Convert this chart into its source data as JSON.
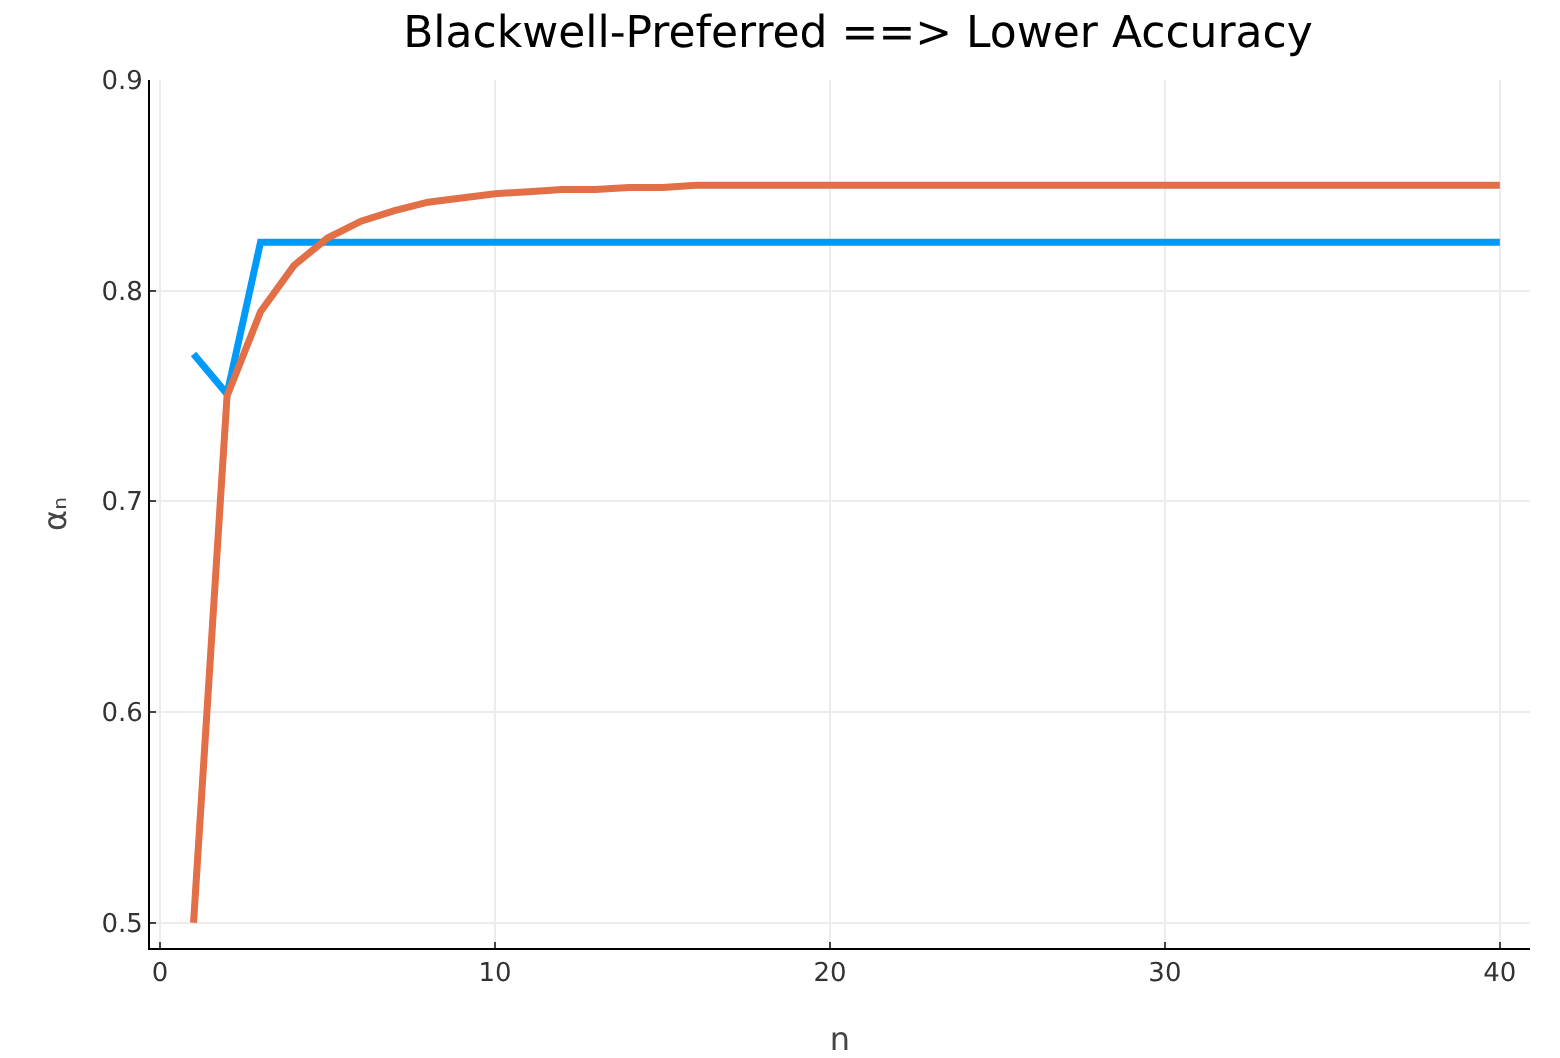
{
  "chart_data": {
    "type": "line",
    "title": "Blackwell-Preferred ==> Lower Accuracy",
    "xlabel": "n",
    "ylabel": "αₙ",
    "x": [
      1,
      2,
      3,
      4,
      5,
      6,
      7,
      8,
      9,
      10,
      11,
      12,
      13,
      14,
      15,
      16,
      17,
      18,
      19,
      20,
      21,
      22,
      23,
      24,
      25,
      26,
      27,
      28,
      29,
      30,
      31,
      32,
      33,
      34,
      35,
      36,
      37,
      38,
      39,
      40
    ],
    "series": [
      {
        "color": "#009af9",
        "values": [
          0.77,
          0.751,
          0.823,
          0.823,
          0.823,
          0.823,
          0.823,
          0.823,
          0.823,
          0.823,
          0.823,
          0.823,
          0.823,
          0.823,
          0.823,
          0.823,
          0.823,
          0.823,
          0.823,
          0.823,
          0.823,
          0.823,
          0.823,
          0.823,
          0.823,
          0.823,
          0.823,
          0.823,
          0.823,
          0.823,
          0.823,
          0.823,
          0.823,
          0.823,
          0.823,
          0.823,
          0.823,
          0.823,
          0.823,
          0.823
        ]
      },
      {
        "color": "#e26f46",
        "values": [
          0.5,
          0.75,
          0.79,
          0.812,
          0.825,
          0.833,
          0.838,
          0.842,
          0.844,
          0.846,
          0.847,
          0.848,
          0.848,
          0.849,
          0.849,
          0.85,
          0.85,
          0.85,
          0.85,
          0.85,
          0.85,
          0.85,
          0.85,
          0.85,
          0.85,
          0.85,
          0.85,
          0.85,
          0.85,
          0.85,
          0.85,
          0.85,
          0.85,
          0.85,
          0.85,
          0.85,
          0.85,
          0.85,
          0.85,
          0.85
        ]
      }
    ],
    "xlim": [
      -0.3,
      40.9
    ],
    "xticks": [
      0,
      10,
      20,
      30,
      40
    ],
    "ylim": [
      0.488,
      0.9
    ],
    "yticks": [
      0.5,
      0.6,
      0.7,
      0.8,
      0.9
    ],
    "grid": true,
    "legend": false,
    "marker": "none",
    "line_style": "solid"
  }
}
